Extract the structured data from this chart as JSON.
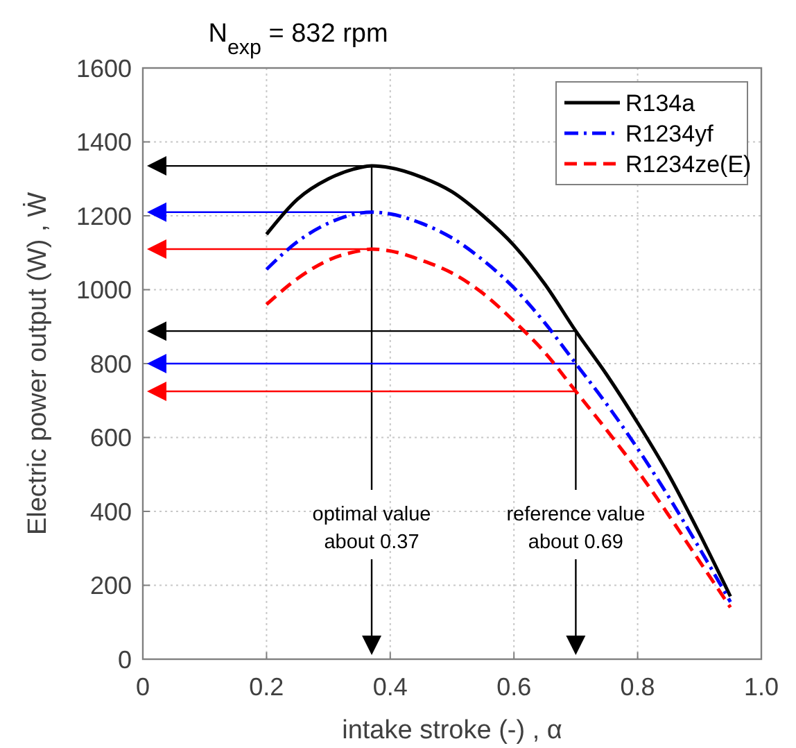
{
  "chart_data": {
    "type": "line",
    "title": "N$_{exp}$ = 832 rpm",
    "xlabel": "intake stroke (-) , α",
    "ylabel": "Electric power output (W) , Ẇ",
    "x": [
      0.2,
      0.25,
      0.3,
      0.35,
      0.37,
      0.4,
      0.45,
      0.5,
      0.55,
      0.6,
      0.65,
      0.7,
      0.75,
      0.8,
      0.85,
      0.9,
      0.95
    ],
    "series": [
      {
        "name": "R134a",
        "color": "#000000",
        "line_style": "solid",
        "values": [
          1150,
          1245,
          1300,
          1330,
          1335,
          1330,
          1305,
          1265,
          1200,
          1120,
          1015,
          888,
          770,
          640,
          500,
          340,
          170
        ]
      },
      {
        "name": "R1234yf",
        "color": "#0000ff",
        "line_style": "dashdot",
        "values": [
          1055,
          1130,
          1180,
          1207,
          1210,
          1205,
          1180,
          1140,
          1080,
          1005,
          910,
          800,
          690,
          570,
          440,
          300,
          155
        ]
      },
      {
        "name": "R1234ze(E)",
        "color": "#ff0000",
        "line_style": "dashed",
        "values": [
          960,
          1030,
          1080,
          1105,
          1110,
          1105,
          1080,
          1045,
          990,
          915,
          830,
          725,
          620,
          510,
          390,
          265,
          140
        ]
      }
    ],
    "xlim": [
      0,
      1
    ],
    "xticks": [
      0,
      0.2,
      0.4,
      0.6,
      0.8,
      {
        "value": 1,
        "label": "1.0"
      }
    ],
    "ylim": [
      0,
      1600
    ],
    "yticks": [
      0,
      200,
      400,
      600,
      800,
      1000,
      1200,
      1400,
      1600
    ],
    "grid": true,
    "legend": "top right",
    "ref_lines": [
      {
        "axis": "x",
        "value": 0.37,
        "label": "optimal value\nabout 0.37",
        "color": "#000000"
      },
      {
        "axis": "x",
        "value": 0.7,
        "label": "reference value\nabout 0.69",
        "color": "#000000"
      }
    ]
  }
}
